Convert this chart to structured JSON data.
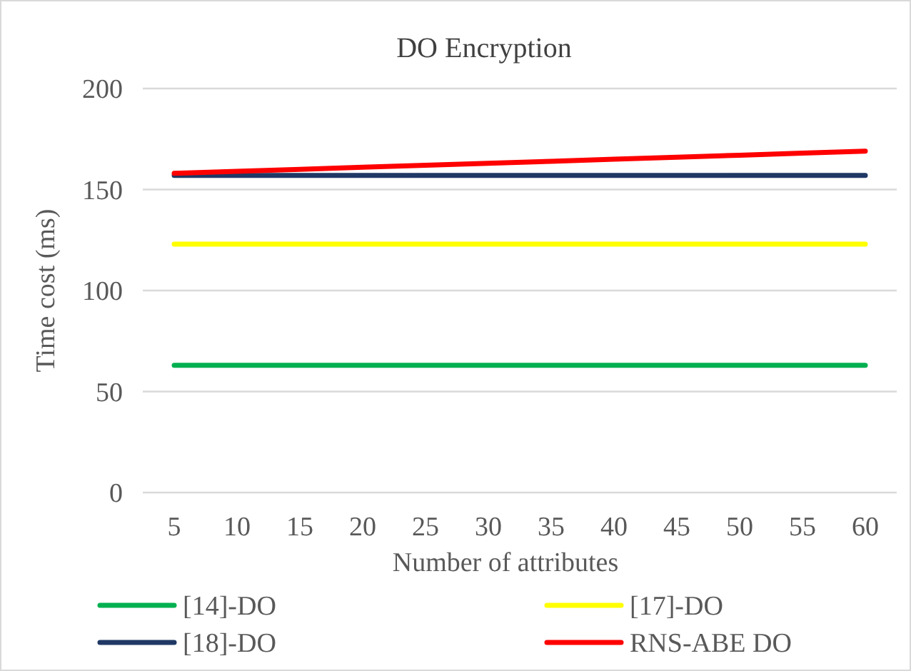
{
  "chart_data": {
    "type": "line",
    "title": "DO Encryption",
    "xlabel": "Number of attributes",
    "ylabel": "Time cost (ms)",
    "categories": [
      "5",
      "10",
      "15",
      "20",
      "25",
      "30",
      "35",
      "40",
      "45",
      "50",
      "55",
      "60"
    ],
    "ylim": [
      0,
      200
    ],
    "yticks": [
      0,
      50,
      100,
      150,
      200
    ],
    "grid": "y",
    "legend": "bottom",
    "marker": "none",
    "line_style": "solid",
    "series": [
      {
        "name": "[14]-DO",
        "color": "#00b050",
        "values": [
          63,
          63,
          63,
          63,
          63,
          63,
          63,
          63,
          63,
          63,
          63,
          63
        ]
      },
      {
        "name": "[17]-DO",
        "color": "#ffff00",
        "values": [
          123,
          123,
          123,
          123,
          123,
          123,
          123,
          123,
          123,
          123,
          123,
          123
        ]
      },
      {
        "name": "[18]-DO",
        "color": "#1f3864",
        "values": [
          157,
          157,
          157,
          157,
          157,
          157,
          157,
          157,
          157,
          157,
          157,
          157
        ]
      },
      {
        "name": "RNS-ABE DO",
        "color": "#ff0000",
        "values": [
          158,
          159,
          160,
          161,
          162,
          163,
          164,
          165,
          166,
          167,
          168,
          169
        ]
      }
    ]
  }
}
